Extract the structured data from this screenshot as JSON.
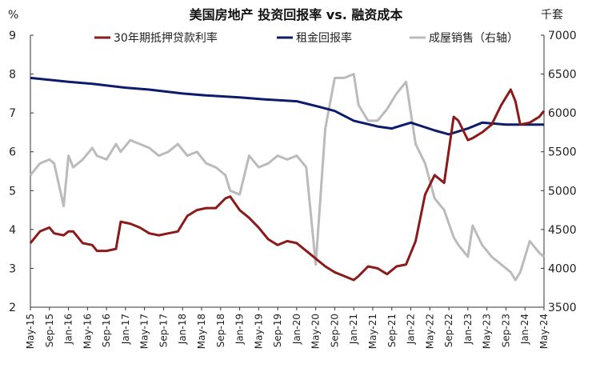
{
  "chart_data": {
    "type": "line",
    "title": "美国房地产 投资回报率 vs. 融资成本",
    "y_unit_left": "%",
    "y_unit_right": "千套",
    "ylim_left": [
      2,
      9
    ],
    "yticks_left": [
      2,
      3,
      4,
      5,
      6,
      7,
      8,
      9
    ],
    "ylim_right": [
      3500,
      7000
    ],
    "yticks_right": [
      3500,
      4000,
      4500,
      5000,
      5500,
      6000,
      6500,
      7000
    ],
    "x_start": "2015-05",
    "x_end": "2024-05",
    "x_ticks": [
      "May-15",
      "Sep-15",
      "Jan-16",
      "May-16",
      "Sep-16",
      "Jan-17",
      "May-17",
      "Sep-17",
      "Jan-18",
      "May-18",
      "Sep-18",
      "Jan-19",
      "May-19",
      "Sep-19",
      "Jan-20",
      "May-20",
      "Sep-20",
      "Jan-21",
      "May-21",
      "Sep-21",
      "Jan-22",
      "May-22",
      "Sep-22",
      "Jan-23",
      "May-23",
      "Sep-23",
      "Jan-24",
      "May-24"
    ],
    "legend_position": "top",
    "grid": false,
    "series": [
      {
        "name": "30年期抵押贷款利率",
        "axis": "left",
        "color": "#8B1A1A",
        "points": [
          [
            "2015-05",
            3.65
          ],
          [
            "2015-07",
            3.95
          ],
          [
            "2015-09",
            4.05
          ],
          [
            "2015-10",
            3.9
          ],
          [
            "2015-12",
            3.85
          ],
          [
            "2016-01",
            3.95
          ],
          [
            "2016-02",
            3.95
          ],
          [
            "2016-04",
            3.65
          ],
          [
            "2016-06",
            3.6
          ],
          [
            "2016-07",
            3.45
          ],
          [
            "2016-09",
            3.45
          ],
          [
            "2016-11",
            3.5
          ],
          [
            "2016-12",
            4.2
          ],
          [
            "2017-02",
            4.15
          ],
          [
            "2017-04",
            4.05
          ],
          [
            "2017-06",
            3.9
          ],
          [
            "2017-08",
            3.85
          ],
          [
            "2017-10",
            3.9
          ],
          [
            "2017-12",
            3.95
          ],
          [
            "2018-02",
            4.35
          ],
          [
            "2018-04",
            4.5
          ],
          [
            "2018-06",
            4.55
          ],
          [
            "2018-08",
            4.55
          ],
          [
            "2018-10",
            4.8
          ],
          [
            "2018-11",
            4.85
          ],
          [
            "2019-01",
            4.5
          ],
          [
            "2019-03",
            4.3
          ],
          [
            "2019-05",
            4.05
          ],
          [
            "2019-07",
            3.75
          ],
          [
            "2019-09",
            3.6
          ],
          [
            "2019-11",
            3.7
          ],
          [
            "2020-01",
            3.65
          ],
          [
            "2020-03",
            3.45
          ],
          [
            "2020-05",
            3.25
          ],
          [
            "2020-07",
            3.05
          ],
          [
            "2020-09",
            2.9
          ],
          [
            "2020-11",
            2.8
          ],
          [
            "2021-01",
            2.7
          ],
          [
            "2021-02",
            2.8
          ],
          [
            "2021-04",
            3.05
          ],
          [
            "2021-06",
            3.0
          ],
          [
            "2021-08",
            2.85
          ],
          [
            "2021-10",
            3.05
          ],
          [
            "2021-12",
            3.1
          ],
          [
            "2022-02",
            3.7
          ],
          [
            "2022-04",
            4.9
          ],
          [
            "2022-06",
            5.4
          ],
          [
            "2022-08",
            5.2
          ],
          [
            "2022-10",
            6.9
          ],
          [
            "2022-11",
            6.8
          ],
          [
            "2023-01",
            6.3
          ],
          [
            "2023-02",
            6.35
          ],
          [
            "2023-04",
            6.5
          ],
          [
            "2023-06",
            6.7
          ],
          [
            "2023-08",
            7.2
          ],
          [
            "2023-10",
            7.6
          ],
          [
            "2023-11",
            7.3
          ],
          [
            "2023-12",
            6.7
          ],
          [
            "2024-02",
            6.75
          ],
          [
            "2024-04",
            6.9
          ],
          [
            "2024-05",
            7.05
          ]
        ]
      },
      {
        "name": "租金回报率",
        "axis": "left",
        "color": "#0D1B6B",
        "points": [
          [
            "2015-05",
            7.9
          ],
          [
            "2016-01",
            7.8
          ],
          [
            "2016-06",
            7.75
          ],
          [
            "2017-01",
            7.65
          ],
          [
            "2017-06",
            7.6
          ],
          [
            "2018-01",
            7.5
          ],
          [
            "2018-06",
            7.45
          ],
          [
            "2019-01",
            7.4
          ],
          [
            "2019-06",
            7.35
          ],
          [
            "2020-01",
            7.3
          ],
          [
            "2020-06",
            7.15
          ],
          [
            "2020-09",
            7.05
          ],
          [
            "2021-01",
            6.8
          ],
          [
            "2021-06",
            6.65
          ],
          [
            "2021-09",
            6.6
          ],
          [
            "2022-01",
            6.75
          ],
          [
            "2022-06",
            6.55
          ],
          [
            "2022-09",
            6.45
          ],
          [
            "2023-01",
            6.6
          ],
          [
            "2023-04",
            6.75
          ],
          [
            "2023-09",
            6.7
          ],
          [
            "2024-01",
            6.7
          ],
          [
            "2024-05",
            6.7
          ]
        ]
      },
      {
        "name": "成屋销售（右轴）",
        "axis": "right",
        "color": "#BBBBBB",
        "points": [
          [
            "2015-05",
            5200
          ],
          [
            "2015-07",
            5350
          ],
          [
            "2015-09",
            5400
          ],
          [
            "2015-10",
            5350
          ],
          [
            "2015-12",
            4800
          ],
          [
            "2016-01",
            5450
          ],
          [
            "2016-02",
            5300
          ],
          [
            "2016-04",
            5400
          ],
          [
            "2016-06",
            5550
          ],
          [
            "2016-07",
            5450
          ],
          [
            "2016-09",
            5400
          ],
          [
            "2016-11",
            5600
          ],
          [
            "2016-12",
            5500
          ],
          [
            "2017-02",
            5650
          ],
          [
            "2017-04",
            5600
          ],
          [
            "2017-06",
            5550
          ],
          [
            "2017-08",
            5450
          ],
          [
            "2017-10",
            5500
          ],
          [
            "2017-12",
            5600
          ],
          [
            "2018-02",
            5450
          ],
          [
            "2018-04",
            5500
          ],
          [
            "2018-06",
            5350
          ],
          [
            "2018-08",
            5300
          ],
          [
            "2018-10",
            5200
          ],
          [
            "2018-11",
            5000
          ],
          [
            "2019-01",
            4950
          ],
          [
            "2019-03",
            5450
          ],
          [
            "2019-05",
            5300
          ],
          [
            "2019-07",
            5350
          ],
          [
            "2019-09",
            5450
          ],
          [
            "2019-11",
            5400
          ],
          [
            "2020-01",
            5450
          ],
          [
            "2020-03",
            5300
          ],
          [
            "2020-05",
            4050
          ],
          [
            "2020-07",
            5800
          ],
          [
            "2020-09",
            6450
          ],
          [
            "2020-11",
            6450
          ],
          [
            "2021-01",
            6500
          ],
          [
            "2021-02",
            6100
          ],
          [
            "2021-04",
            5900
          ],
          [
            "2021-06",
            5900
          ],
          [
            "2021-08",
            6050
          ],
          [
            "2021-10",
            6250
          ],
          [
            "2021-12",
            6400
          ],
          [
            "2022-02",
            5600
          ],
          [
            "2022-04",
            5350
          ],
          [
            "2022-06",
            4900
          ],
          [
            "2022-08",
            4750
          ],
          [
            "2022-10",
            4400
          ],
          [
            "2022-11",
            4300
          ],
          [
            "2023-01",
            4150
          ],
          [
            "2023-02",
            4550
          ],
          [
            "2023-04",
            4300
          ],
          [
            "2023-06",
            4150
          ],
          [
            "2023-08",
            4050
          ],
          [
            "2023-10",
            3950
          ],
          [
            "2023-11",
            3850
          ],
          [
            "2023-12",
            3950
          ],
          [
            "2024-02",
            4350
          ],
          [
            "2024-04",
            4200
          ],
          [
            "2024-05",
            4150
          ]
        ]
      }
    ]
  }
}
